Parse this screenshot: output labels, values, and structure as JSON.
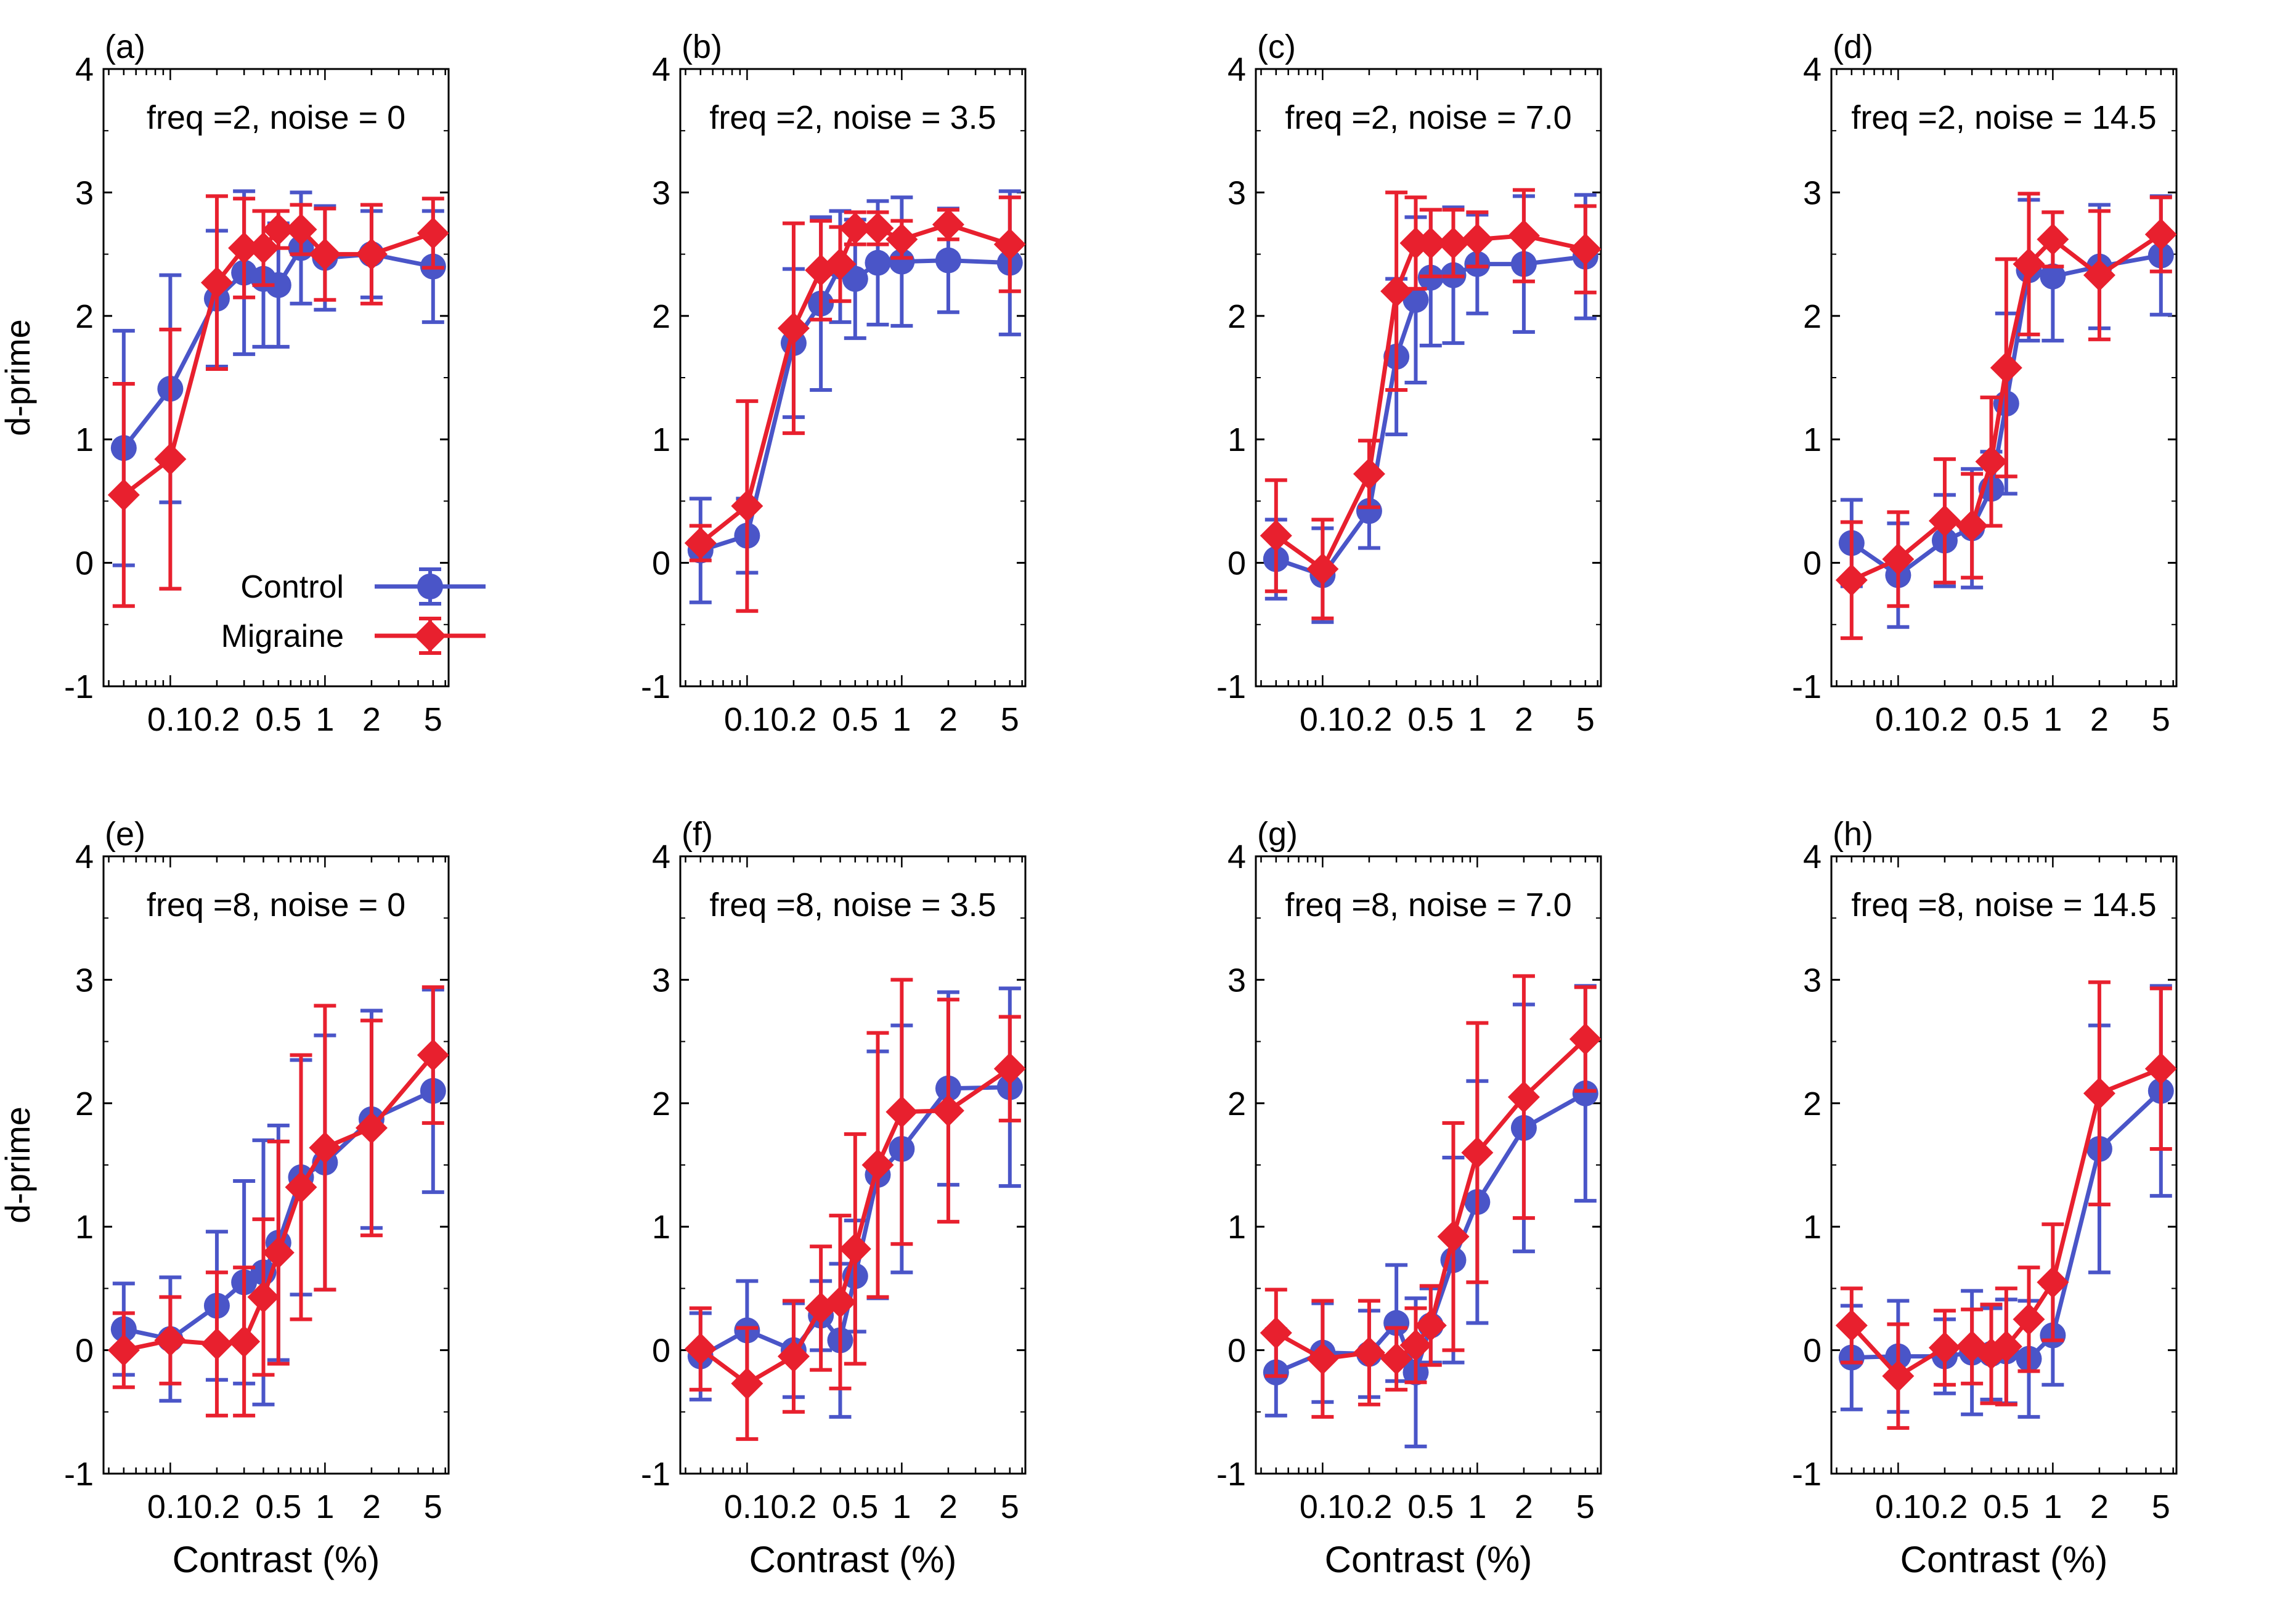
{
  "figure": {
    "common": {
      "ylabel": "d-prime",
      "xlabel": "Contrast (%)",
      "legend": {
        "control": "Control",
        "migraine": "Migraine"
      },
      "colors": {
        "control": "#4a55c8",
        "migraine": "#e8202e"
      },
      "yticks": [
        "-1",
        "0",
        "1",
        "2",
        "3",
        "4"
      ],
      "xticks": [
        "0.1",
        "0.2",
        "0.5",
        "1",
        "2",
        "5"
      ]
    }
  },
  "chart_data": [
    {
      "type": "line",
      "panel_label": "(a)",
      "title": "freq =2, noise = 0",
      "xscale": "log",
      "xlim": [
        0.037,
        6.3
      ],
      "ylim": [
        -1,
        4
      ],
      "series": [
        {
          "name": "Control",
          "x": [
            0.05,
            0.1,
            0.2,
            0.3,
            0.4,
            0.5,
            0.7,
            1,
            2,
            5
          ],
          "y": [
            0.93,
            1.41,
            2.14,
            2.35,
            2.3,
            2.25,
            2.55,
            2.47,
            2.5,
            2.4
          ],
          "err": [
            0.95,
            0.92,
            0.55,
            0.66,
            0.55,
            0.5,
            0.45,
            0.42,
            0.35,
            0.45
          ]
        },
        {
          "name": "Migraine",
          "x": [
            0.05,
            0.1,
            0.2,
            0.3,
            0.4,
            0.5,
            0.7,
            1,
            2,
            5
          ],
          "y": [
            0.55,
            0.84,
            2.27,
            2.55,
            2.55,
            2.7,
            2.7,
            2.5,
            2.5,
            2.67
          ],
          "err": [
            0.9,
            1.05,
            0.7,
            0.4,
            0.3,
            0.15,
            0.2,
            0.37,
            0.4,
            0.28
          ]
        }
      ]
    },
    {
      "type": "line",
      "panel_label": "(b)",
      "title": "freq =2, noise = 3.5",
      "xscale": "log",
      "xlim": [
        0.037,
        6.3
      ],
      "ylim": [
        -1,
        4
      ],
      "series": [
        {
          "name": "Control",
          "x": [
            0.05,
            0.1,
            0.2,
            0.3,
            0.4,
            0.5,
            0.7,
            1,
            2,
            5
          ],
          "y": [
            0.1,
            0.22,
            1.78,
            2.1,
            2.4,
            2.3,
            2.43,
            2.44,
            2.45,
            2.43
          ],
          "err": [
            0.42,
            0.3,
            0.6,
            0.7,
            0.45,
            0.48,
            0.5,
            0.52,
            0.42,
            0.58
          ]
        },
        {
          "name": "Migraine",
          "x": [
            0.05,
            0.1,
            0.2,
            0.3,
            0.4,
            0.5,
            0.7,
            1,
            2,
            5
          ],
          "y": [
            0.16,
            0.46,
            1.9,
            2.37,
            2.42,
            2.71,
            2.71,
            2.62,
            2.74,
            2.58
          ],
          "err": [
            0.14,
            0.85,
            0.85,
            0.4,
            0.3,
            0.13,
            0.13,
            0.15,
            0.12,
            0.38
          ]
        }
      ]
    },
    {
      "type": "line",
      "panel_label": "(c)",
      "title": "freq =2, noise = 7.0",
      "xscale": "log",
      "xlim": [
        0.037,
        6.3
      ],
      "ylim": [
        -1,
        4
      ],
      "series": [
        {
          "name": "Control",
          "x": [
            0.05,
            0.1,
            0.2,
            0.3,
            0.4,
            0.5,
            0.7,
            1,
            2,
            5
          ],
          "y": [
            0.03,
            -0.1,
            0.42,
            1.67,
            2.13,
            2.31,
            2.33,
            2.42,
            2.42,
            2.48
          ],
          "err": [
            0.32,
            0.38,
            0.3,
            0.63,
            0.67,
            0.55,
            0.55,
            0.4,
            0.55,
            0.5
          ]
        },
        {
          "name": "Migraine",
          "x": [
            0.05,
            0.1,
            0.2,
            0.3,
            0.4,
            0.5,
            0.7,
            1,
            2,
            5
          ],
          "y": [
            0.22,
            -0.05,
            0.72,
            2.2,
            2.59,
            2.59,
            2.59,
            2.62,
            2.65,
            2.54
          ],
          "err": [
            0.45,
            0.4,
            0.27,
            0.8,
            0.37,
            0.27,
            0.27,
            0.22,
            0.37,
            0.35
          ]
        }
      ]
    },
    {
      "type": "line",
      "panel_label": "(d)",
      "title": "freq =2, noise = 14.5",
      "xscale": "log",
      "xlim": [
        0.037,
        6.3
      ],
      "ylim": [
        -1,
        4
      ],
      "series": [
        {
          "name": "Control",
          "x": [
            0.05,
            0.1,
            0.2,
            0.3,
            0.4,
            0.5,
            0.7,
            1,
            2,
            5
          ],
          "y": [
            0.16,
            -0.1,
            0.18,
            0.28,
            0.6,
            1.29,
            2.37,
            2.32,
            2.4,
            2.49
          ],
          "err": [
            0.35,
            0.42,
            0.37,
            0.48,
            0.3,
            0.73,
            0.57,
            0.52,
            0.5,
            0.48
          ]
        },
        {
          "name": "Migraine",
          "x": [
            0.05,
            0.1,
            0.2,
            0.3,
            0.4,
            0.5,
            0.7,
            1,
            2,
            5
          ],
          "y": [
            -0.14,
            0.03,
            0.34,
            0.3,
            0.82,
            1.58,
            2.42,
            2.62,
            2.33,
            2.66
          ],
          "err": [
            0.47,
            0.38,
            0.5,
            0.42,
            0.52,
            0.88,
            0.57,
            0.22,
            0.52,
            0.3
          ]
        }
      ]
    },
    {
      "type": "line",
      "panel_label": "(e)",
      "title": "freq =8, noise = 0",
      "xscale": "log",
      "xlim": [
        0.037,
        6.3
      ],
      "ylim": [
        -1,
        4
      ],
      "series": [
        {
          "name": "Control",
          "x": [
            0.05,
            0.1,
            0.2,
            0.3,
            0.4,
            0.5,
            0.7,
            1,
            2,
            5
          ],
          "y": [
            0.17,
            0.09,
            0.36,
            0.55,
            0.63,
            0.87,
            1.4,
            1.52,
            1.87,
            2.1
          ],
          "err": [
            0.37,
            0.5,
            0.6,
            0.82,
            1.07,
            0.95,
            0.95,
            1.03,
            0.88,
            0.82
          ]
        },
        {
          "name": "Migraine",
          "x": [
            0.05,
            0.1,
            0.2,
            0.3,
            0.4,
            0.5,
            0.7,
            1,
            2,
            5
          ],
          "y": [
            0.0,
            0.08,
            0.05,
            0.07,
            0.43,
            0.79,
            1.32,
            1.64,
            1.8,
            2.39
          ],
          "err": [
            0.3,
            0.35,
            0.58,
            0.6,
            0.63,
            0.9,
            1.07,
            1.15,
            0.87,
            0.55
          ]
        }
      ]
    },
    {
      "type": "line",
      "panel_label": "(f)",
      "title": "freq =8, noise = 3.5",
      "xscale": "log",
      "xlim": [
        0.037,
        6.3
      ],
      "ylim": [
        -1,
        4
      ],
      "series": [
        {
          "name": "Control",
          "x": [
            0.05,
            0.1,
            0.2,
            0.3,
            0.4,
            0.5,
            0.7,
            1,
            2,
            5
          ],
          "y": [
            -0.05,
            0.16,
            0.0,
            0.28,
            0.08,
            0.6,
            1.42,
            1.63,
            2.12,
            2.13
          ],
          "err": [
            0.35,
            0.4,
            0.38,
            0.28,
            0.62,
            0.45,
            1.0,
            1.0,
            0.78,
            0.8
          ]
        },
        {
          "name": "Migraine",
          "x": [
            0.05,
            0.1,
            0.2,
            0.3,
            0.4,
            0.5,
            0.7,
            1,
            2,
            5
          ],
          "y": [
            0.01,
            -0.27,
            -0.05,
            0.34,
            0.39,
            0.82,
            1.5,
            1.93,
            1.94,
            2.28
          ],
          "err": [
            0.33,
            0.45,
            0.45,
            0.5,
            0.7,
            0.93,
            1.07,
            1.07,
            0.9,
            0.42
          ]
        }
      ]
    },
    {
      "type": "line",
      "panel_label": "(g)",
      "title": "freq =8, noise = 7.0",
      "xscale": "log",
      "xlim": [
        0.037,
        6.3
      ],
      "ylim": [
        -1,
        4
      ],
      "series": [
        {
          "name": "Control",
          "x": [
            0.05,
            0.1,
            0.2,
            0.3,
            0.4,
            0.5,
            0.7,
            1,
            2,
            5
          ],
          "y": [
            -0.18,
            -0.02,
            -0.03,
            0.22,
            -0.18,
            0.2,
            0.73,
            1.2,
            1.8,
            2.08
          ],
          "err": [
            0.35,
            0.4,
            0.35,
            0.47,
            0.6,
            0.3,
            0.83,
            0.98,
            1.0,
            0.87
          ]
        },
        {
          "name": "Migraine",
          "x": [
            0.05,
            0.1,
            0.2,
            0.3,
            0.4,
            0.5,
            0.7,
            1,
            2,
            5
          ],
          "y": [
            0.14,
            -0.07,
            -0.02,
            -0.07,
            0.04,
            0.2,
            0.92,
            1.6,
            2.05,
            2.52
          ],
          "err": [
            0.35,
            0.47,
            0.42,
            0.25,
            0.3,
            0.32,
            0.92,
            1.05,
            0.98,
            0.42
          ]
        }
      ]
    },
    {
      "type": "line",
      "panel_label": "(h)",
      "title": "freq =8, noise = 14.5",
      "xscale": "log",
      "xlim": [
        0.037,
        6.3
      ],
      "ylim": [
        -1,
        4
      ],
      "series": [
        {
          "name": "Control",
          "x": [
            0.05,
            0.1,
            0.2,
            0.3,
            0.4,
            0.5,
            0.7,
            1,
            2,
            5
          ],
          "y": [
            -0.06,
            -0.05,
            -0.05,
            -0.02,
            -0.03,
            -0.01,
            -0.07,
            0.12,
            1.63,
            2.1
          ],
          "err": [
            0.42,
            0.45,
            0.3,
            0.5,
            0.37,
            0.42,
            0.47,
            0.4,
            1.0,
            0.85
          ]
        },
        {
          "name": "Migraine",
          "x": [
            0.05,
            0.1,
            0.2,
            0.3,
            0.4,
            0.5,
            0.7,
            1,
            2,
            5
          ],
          "y": [
            0.2,
            -0.21,
            0.02,
            0.03,
            -0.03,
            0.03,
            0.25,
            0.55,
            2.08,
            2.28
          ],
          "err": [
            0.3,
            0.42,
            0.3,
            0.3,
            0.4,
            0.47,
            0.42,
            0.47,
            0.9,
            0.65
          ]
        }
      ]
    }
  ]
}
